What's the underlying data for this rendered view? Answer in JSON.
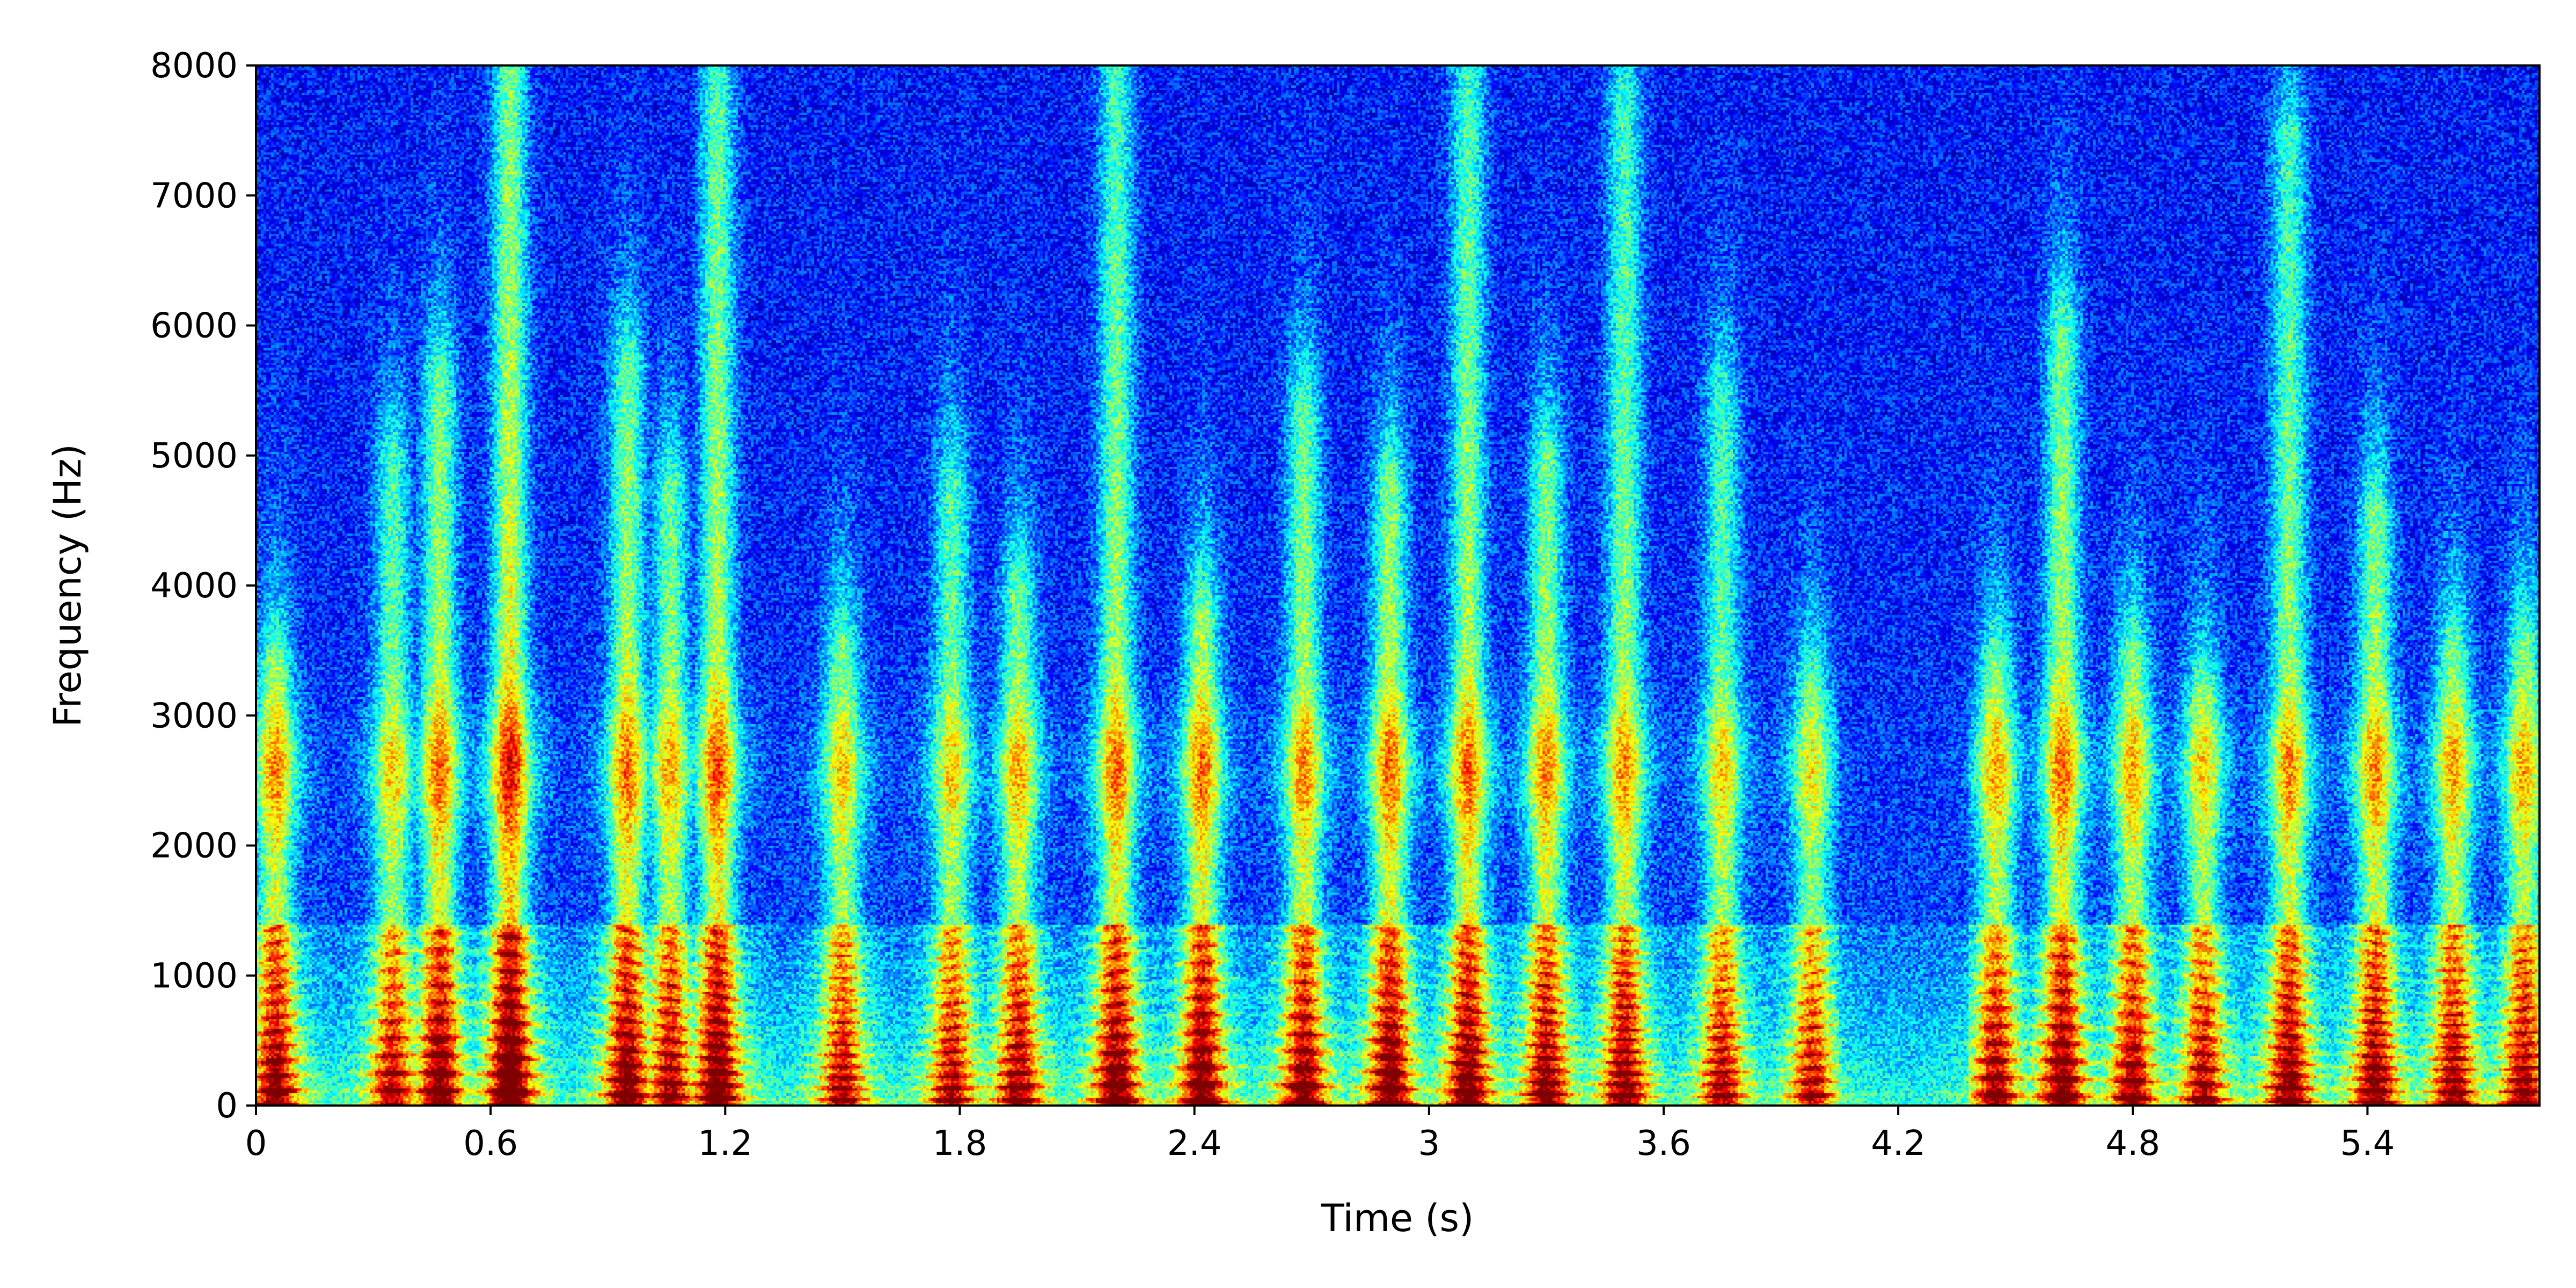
{
  "chart_data": {
    "type": "heatmap",
    "title": "",
    "xlabel": "Time (s)",
    "ylabel": "Frequency (Hz)",
    "xlim": [
      0,
      5.84
    ],
    "ylim": [
      0,
      8000
    ],
    "x_ticks": [
      {
        "value": 0,
        "label": "0"
      },
      {
        "value": 0.6,
        "label": "0.6"
      },
      {
        "value": 1.2,
        "label": "1.2"
      },
      {
        "value": 1.8,
        "label": "1.8"
      },
      {
        "value": 2.4,
        "label": "2.4"
      },
      {
        "value": 3.0,
        "label": "3"
      },
      {
        "value": 3.6,
        "label": "3.6"
      },
      {
        "value": 4.2,
        "label": "4.2"
      },
      {
        "value": 4.8,
        "label": "4.8"
      },
      {
        "value": 5.4,
        "label": "5.4"
      }
    ],
    "y_ticks": [
      {
        "value": 0,
        "label": "0"
      },
      {
        "value": 1000,
        "label": "1000"
      },
      {
        "value": 2000,
        "label": "2000"
      },
      {
        "value": 3000,
        "label": "3000"
      },
      {
        "value": 4000,
        "label": "4000"
      },
      {
        "value": 5000,
        "label": "5000"
      },
      {
        "value": 6000,
        "label": "6000"
      },
      {
        "value": 7000,
        "label": "7000"
      },
      {
        "value": 8000,
        "label": "8000"
      }
    ],
    "colormap": "jet",
    "colormap_stops": [
      "#00007f",
      "#0000ff",
      "#007fff",
      "#00ffff",
      "#7fff7f",
      "#ffff00",
      "#ff7f00",
      "#ff0000",
      "#7f0000"
    ],
    "grid": false,
    "legend": "none",
    "energy_events": [
      {
        "t": 0.05,
        "fmax": 3400,
        "level": 0.8
      },
      {
        "t": 0.35,
        "fmax": 5000,
        "level": 0.7
      },
      {
        "t": 0.47,
        "fmax": 5600,
        "level": 0.85
      },
      {
        "t": 0.65,
        "fmax": 8000,
        "level": 1.0
      },
      {
        "t": 0.95,
        "fmax": 5700,
        "level": 0.85
      },
      {
        "t": 1.06,
        "fmax": 4800,
        "level": 0.75
      },
      {
        "t": 1.18,
        "fmax": 8000,
        "level": 0.9
      },
      {
        "t": 1.5,
        "fmax": 3600,
        "level": 0.7
      },
      {
        "t": 1.78,
        "fmax": 4800,
        "level": 0.7
      },
      {
        "t": 1.95,
        "fmax": 4000,
        "level": 0.75
      },
      {
        "t": 2.2,
        "fmax": 8000,
        "level": 0.85
      },
      {
        "t": 2.42,
        "fmax": 3800,
        "level": 0.85
      },
      {
        "t": 2.68,
        "fmax": 5400,
        "level": 0.8
      },
      {
        "t": 2.9,
        "fmax": 4800,
        "level": 0.85
      },
      {
        "t": 3.1,
        "fmax": 8000,
        "level": 0.85
      },
      {
        "t": 3.3,
        "fmax": 5000,
        "level": 0.8
      },
      {
        "t": 3.5,
        "fmax": 7800,
        "level": 0.8
      },
      {
        "t": 3.75,
        "fmax": 5500,
        "level": 0.7
      },
      {
        "t": 3.98,
        "fmax": 3300,
        "level": 0.65
      },
      {
        "t": 4.45,
        "fmax": 3400,
        "level": 0.75
      },
      {
        "t": 4.62,
        "fmax": 6000,
        "level": 0.85
      },
      {
        "t": 4.8,
        "fmax": 3500,
        "level": 0.75
      },
      {
        "t": 4.98,
        "fmax": 3200,
        "level": 0.7
      },
      {
        "t": 5.2,
        "fmax": 7500,
        "level": 0.8
      },
      {
        "t": 5.42,
        "fmax": 4600,
        "level": 0.8
      },
      {
        "t": 5.62,
        "fmax": 3500,
        "level": 0.75
      },
      {
        "t": 5.8,
        "fmax": 3600,
        "level": 0.75
      }
    ]
  }
}
